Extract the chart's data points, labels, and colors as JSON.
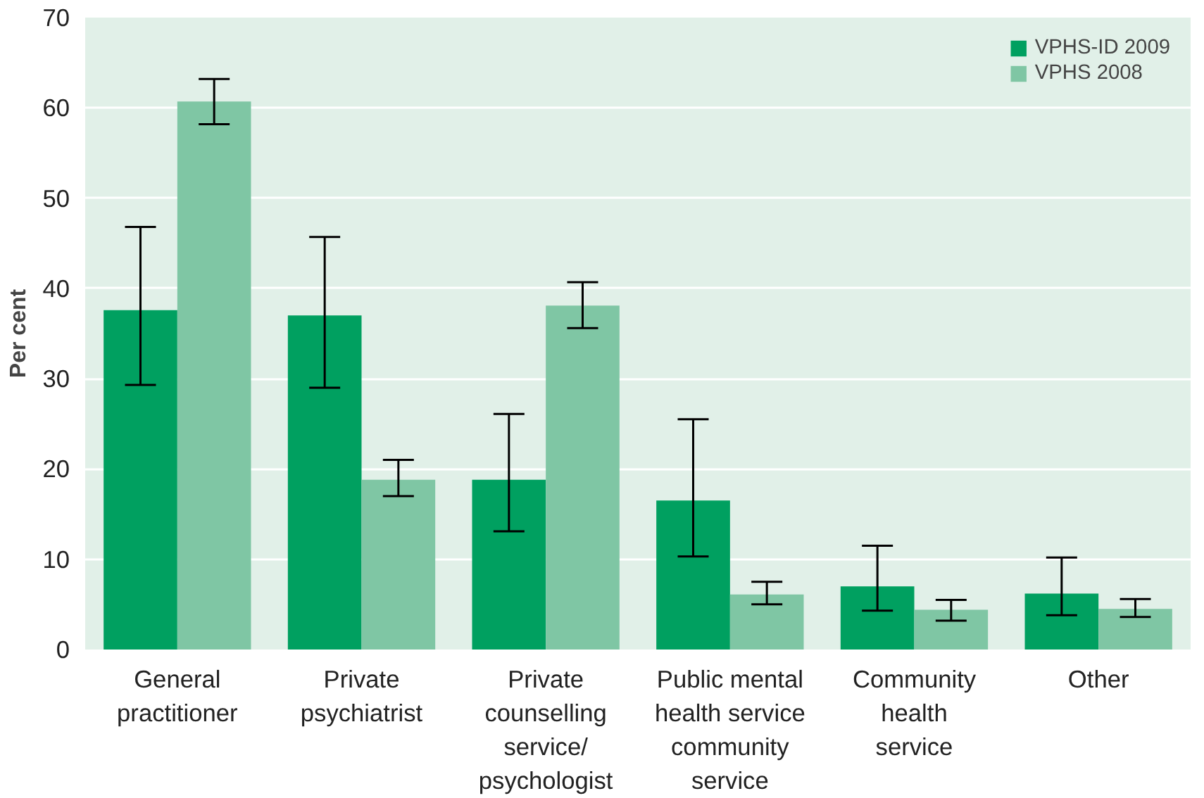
{
  "chart_data": {
    "type": "bar",
    "ylabel": "Per cent",
    "categories": [
      "General\npractitioner",
      "Private\npsychiatrist",
      "Private\ncounselling\nservice/\npsychologist",
      "Public mental\nhealth service\ncommunity\nservice",
      "Community\nhealth\nservice",
      "Other"
    ],
    "series": [
      {
        "name": "VPHS-ID 2009",
        "color": "#00a060",
        "values": [
          37.6,
          37.0,
          18.8,
          16.5,
          7.0,
          6.2
        ],
        "errors": [
          [
            29.3,
            46.8
          ],
          [
            29.0,
            45.7
          ],
          [
            13.1,
            26.1
          ],
          [
            10.3,
            25.5
          ],
          [
            4.3,
            11.5
          ],
          [
            3.8,
            10.2
          ]
        ]
      },
      {
        "name": "VPHS 2008",
        "color": "#7fc6a4",
        "values": [
          60.7,
          18.8,
          38.1,
          6.1,
          4.4,
          4.5
        ],
        "errors": [
          [
            58.2,
            63.2
          ],
          [
            17.0,
            21.0
          ],
          [
            35.6,
            40.7
          ],
          [
            5.0,
            7.5
          ],
          [
            3.2,
            5.5
          ],
          [
            3.6,
            5.6
          ]
        ]
      }
    ],
    "ylim": [
      0,
      70
    ],
    "yticks": [
      0,
      10,
      20,
      30,
      40,
      50,
      60,
      70
    ],
    "grid": "y",
    "legend": "top right"
  }
}
